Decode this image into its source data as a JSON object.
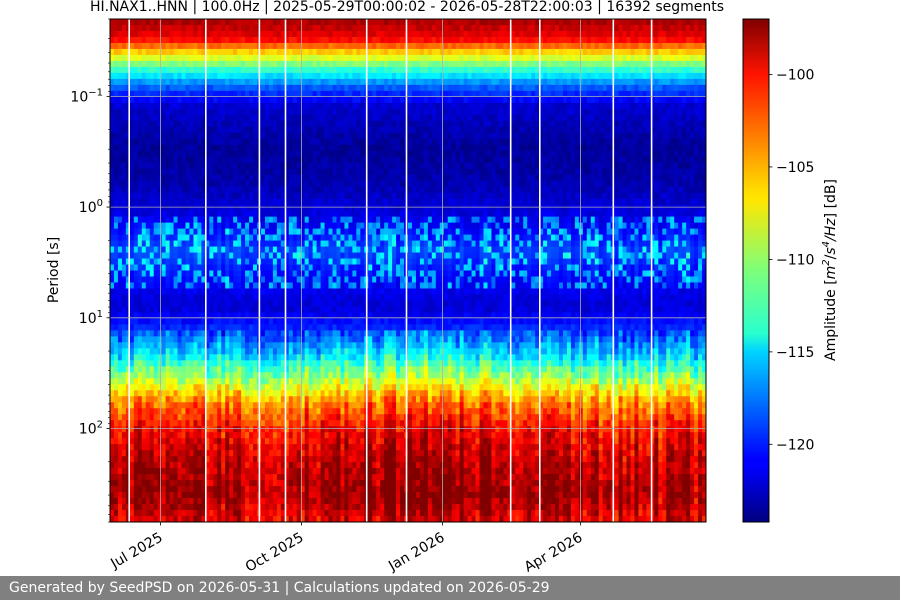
{
  "chart_data": {
    "type": "heatmap",
    "title": "HI.NAX1..HNN | 100.0Hz | 2025-05-29T00:00:02 - 2026-05-28T22:00:03 | 16392 segments",
    "ylabel": "Period [s]",
    "x_start": "2025-05-29",
    "x_end": "2026-06-22",
    "x_tick_labels": [
      {
        "date": "2025-07-01",
        "label": "Jul 2025"
      },
      {
        "date": "2025-10-01",
        "label": "Oct 2025"
      },
      {
        "date": "2026-01-01",
        "label": "Jan 2026"
      },
      {
        "date": "2026-04-01",
        "label": "Apr 2026"
      }
    ],
    "y_scale": "log",
    "y_inverted": true,
    "ylim": [
      0.02,
      700
    ],
    "y_tick_labels": [
      {
        "value": 0.1,
        "base": "10",
        "exp": "−1"
      },
      {
        "value": 1,
        "base": "10",
        "exp": "0"
      },
      {
        "value": 10,
        "base": "10",
        "exp": "1"
      },
      {
        "value": 100,
        "base": "10",
        "exp": "2"
      }
    ],
    "grid": true,
    "colormap": "jet",
    "colorbar": {
      "label_parts": [
        "Amplitude [",
        "m",
        "2",
        "/",
        "s",
        "4",
        "/",
        "Hz",
        "] [dB]"
      ],
      "vmin": -124.2,
      "vmax": -97,
      "ticks": [
        {
          "value": -100,
          "label": "−100"
        },
        {
          "value": -105,
          "label": "−105"
        },
        {
          "value": -110,
          "label": "−110"
        },
        {
          "value": -115,
          "label": "−115"
        },
        {
          "value": -120,
          "label": "−120"
        }
      ]
    },
    "amplitude_profile": [
      {
        "period": 0.02,
        "db": -98
      },
      {
        "period": 0.03,
        "db": -100
      },
      {
        "period": 0.04,
        "db": -106
      },
      {
        "period": 0.055,
        "db": -112
      },
      {
        "period": 0.08,
        "db": -118
      },
      {
        "period": 0.12,
        "db": -122
      },
      {
        "period": 0.3,
        "db": -123.5
      },
      {
        "period": 0.6,
        "db": -123
      },
      {
        "period": 1.5,
        "db": -121
      },
      {
        "period": 2.5,
        "db": -119
      },
      {
        "period": 4,
        "db": -120.5
      },
      {
        "period": 8,
        "db": -122
      },
      {
        "period": 12,
        "db": -120
      },
      {
        "period": 20,
        "db": -116
      },
      {
        "period": 35,
        "db": -110
      },
      {
        "period": 60,
        "db": -104
      },
      {
        "period": 100,
        "db": -101
      },
      {
        "period": 200,
        "db": -99
      },
      {
        "period": 400,
        "db": -98
      },
      {
        "period": 700,
        "db": -100
      }
    ],
    "data_gaps": [
      "2025-06-10",
      "2025-07-30",
      "2025-09-03",
      "2025-09-20",
      "2025-11-12",
      "2025-12-08",
      "2026-02-14",
      "2026-03-05",
      "2026-04-22",
      "2026-05-17"
    ]
  },
  "footer": {
    "text": "Generated by SeedPSD on 2026-05-31 | Calculations updated on 2026-05-29"
  }
}
